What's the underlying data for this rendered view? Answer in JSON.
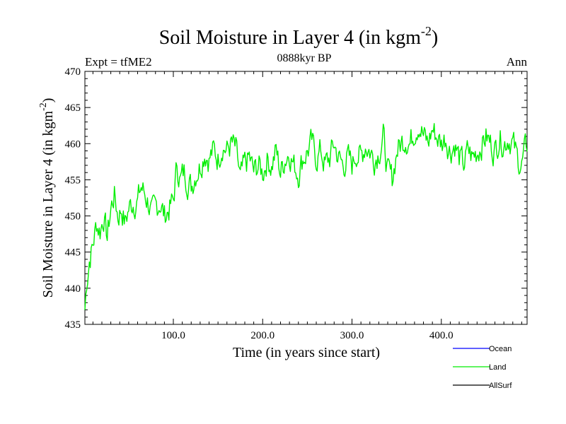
{
  "chart_data": {
    "type": "line",
    "title": "Soil Moisture in Layer 4 (in kgm",
    "title_sup": "-2",
    "title_close": ")",
    "subtitle_left": "Expt = tfME2",
    "subtitle_center": "0888kyr BP",
    "subtitle_right": "Ann",
    "xlabel": "Time (in years since start)",
    "ylabel": "Soil Moisture in Layer 4 (in kgm",
    "ylabel_sup": "-2",
    "ylabel_close": ")",
    "xlim": [
      1,
      496
    ],
    "ylim": [
      435,
      470
    ],
    "xticks": [
      100,
      200,
      300,
      400
    ],
    "xtick_labels": [
      "100.0",
      "200.0",
      "300.0",
      "400.0"
    ],
    "yticks": [
      435,
      440,
      445,
      450,
      455,
      460,
      465,
      470
    ],
    "ytick_labels": [
      "435",
      "440",
      "445",
      "450",
      "455",
      "460",
      "465",
      "470"
    ],
    "legend": [
      {
        "name": "Ocean",
        "color": "#0000ff"
      },
      {
        "name": "Land",
        "color": "#00ee00"
      },
      {
        "name": "AllSurf",
        "color": "#000000"
      }
    ],
    "series": [
      {
        "name": "Land",
        "color": "#00ee00",
        "anchors": [
          [
            1,
            437
          ],
          [
            3,
            441
          ],
          [
            6,
            444
          ],
          [
            10,
            446
          ],
          [
            14,
            449
          ],
          [
            18,
            448
          ],
          [
            22,
            450
          ],
          [
            26,
            447
          ],
          [
            30,
            451
          ],
          [
            34,
            453
          ],
          [
            38,
            450
          ],
          [
            42,
            451
          ],
          [
            46,
            449
          ],
          [
            50,
            451
          ],
          [
            55,
            452
          ],
          [
            60,
            452
          ],
          [
            64,
            454
          ],
          [
            68,
            453
          ],
          [
            72,
            452
          ],
          [
            76,
            450
          ],
          [
            80,
            451
          ],
          [
            85,
            452
          ],
          [
            90,
            450
          ],
          [
            95,
            451
          ],
          [
            100,
            452
          ],
          [
            104,
            457
          ],
          [
            108,
            455
          ],
          [
            112,
            456
          ],
          [
            116,
            455
          ],
          [
            120,
            454
          ],
          [
            125,
            456
          ],
          [
            130,
            457
          ],
          [
            135,
            459
          ],
          [
            140,
            458
          ],
          [
            145,
            459
          ],
          [
            150,
            458
          ],
          [
            155,
            460
          ],
          [
            160,
            459
          ],
          [
            165,
            460
          ],
          [
            170,
            459
          ],
          [
            175,
            455
          ],
          [
            180,
            457
          ],
          [
            185,
            458
          ],
          [
            190,
            456
          ],
          [
            195,
            457
          ],
          [
            200,
            456
          ],
          [
            205,
            458
          ],
          [
            210,
            457
          ],
          [
            215,
            459
          ],
          [
            220,
            456
          ],
          [
            225,
            458
          ],
          [
            230,
            459
          ],
          [
            235,
            457
          ],
          [
            240,
            456
          ],
          [
            245,
            458
          ],
          [
            250,
            459
          ],
          [
            255,
            460
          ],
          [
            260,
            458
          ],
          [
            265,
            459
          ],
          [
            270,
            457
          ],
          [
            275,
            458
          ],
          [
            280,
            460
          ],
          [
            285,
            458
          ],
          [
            290,
            457
          ],
          [
            295,
            458
          ],
          [
            300,
            457
          ],
          [
            305,
            459
          ],
          [
            310,
            458
          ],
          [
            315,
            460
          ],
          [
            320,
            459
          ],
          [
            325,
            458
          ],
          [
            330,
            459
          ],
          [
            335,
            461
          ],
          [
            340,
            456
          ],
          [
            345,
            455
          ],
          [
            350,
            459
          ],
          [
            355,
            460
          ],
          [
            360,
            461
          ],
          [
            365,
            460
          ],
          [
            370,
            462
          ],
          [
            375,
            463
          ],
          [
            380,
            461
          ],
          [
            385,
            460
          ],
          [
            390,
            462
          ],
          [
            395,
            461
          ],
          [
            400,
            460
          ],
          [
            405,
            461
          ],
          [
            410,
            459
          ],
          [
            415,
            460
          ],
          [
            420,
            458
          ],
          [
            425,
            457
          ],
          [
            430,
            459
          ],
          [
            435,
            458
          ],
          [
            440,
            459
          ],
          [
            445,
            460
          ],
          [
            450,
            461
          ],
          [
            455,
            460
          ],
          [
            460,
            459
          ],
          [
            465,
            461
          ],
          [
            470,
            460
          ],
          [
            475,
            461
          ],
          [
            480,
            460
          ],
          [
            485,
            458
          ],
          [
            490,
            457
          ],
          [
            496,
            460
          ]
        ],
        "noise_amplitude": 2.2
      },
      {
        "name": "Ocean",
        "color": "#0000ff",
        "anchors": []
      },
      {
        "name": "AllSurf",
        "color": "#000000",
        "anchors": []
      }
    ]
  }
}
